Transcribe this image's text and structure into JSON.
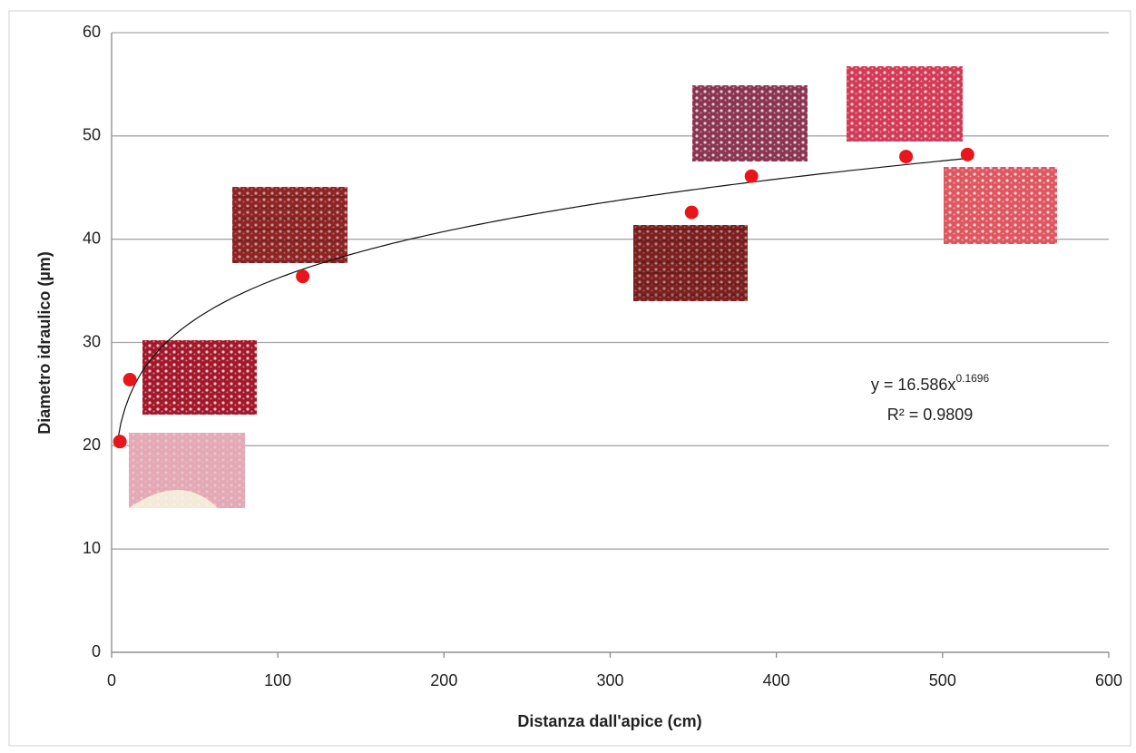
{
  "chart_data": {
    "type": "scatter",
    "x_label": "Distanza dall'apice (cm)",
    "y_label": "Diametro idraulico (µm)",
    "x": [
      5,
      11,
      115,
      349,
      385,
      478,
      515
    ],
    "values": [
      20.4,
      26.4,
      36.4,
      42.6,
      46.1,
      48.0,
      48.2
    ],
    "color": "#e8161b",
    "xlim": [
      0,
      600
    ],
    "xticks": [
      0,
      100,
      200,
      300,
      400,
      500,
      600
    ],
    "ylim": [
      0,
      60
    ],
    "yticks": [
      0,
      10,
      20,
      30,
      40,
      50,
      60
    ],
    "grid": true,
    "trendline": {
      "type": "power",
      "coefficient": 16.586,
      "exponent": 0.1696,
      "label": "y = 16.586x",
      "exponent_label": "0.1696",
      "r2_label": "R² = 0.9809"
    }
  }
}
